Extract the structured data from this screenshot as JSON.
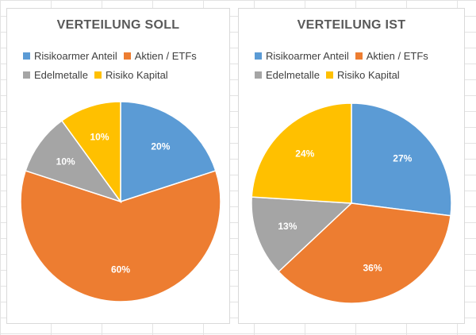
{
  "chart_data": [
    {
      "type": "pie",
      "title": "VERTEILUNG SOLL",
      "categories": [
        "Risikoarmer Anteil",
        "Aktien / ETFs",
        "Edelmetalle",
        "Risiko Kapital"
      ],
      "values": [
        20,
        60,
        10,
        10
      ],
      "labels": [
        "20%",
        "60%",
        "10%",
        "10%"
      ],
      "colors": [
        "#5B9BD5",
        "#ED7D31",
        "#A5A5A5",
        "#FFC000"
      ],
      "legend_position": "top"
    },
    {
      "type": "pie",
      "title": "VERTEILUNG IST",
      "categories": [
        "Risikoarmer Anteil",
        "Aktien / ETFs",
        "Edelmetalle",
        "Risiko Kapital"
      ],
      "values": [
        27,
        36,
        13,
        24
      ],
      "labels": [
        "27%",
        "36%",
        "13%",
        "24%"
      ],
      "colors": [
        "#5B9BD5",
        "#ED7D31",
        "#A5A5A5",
        "#FFC000"
      ],
      "legend_position": "top"
    }
  ]
}
